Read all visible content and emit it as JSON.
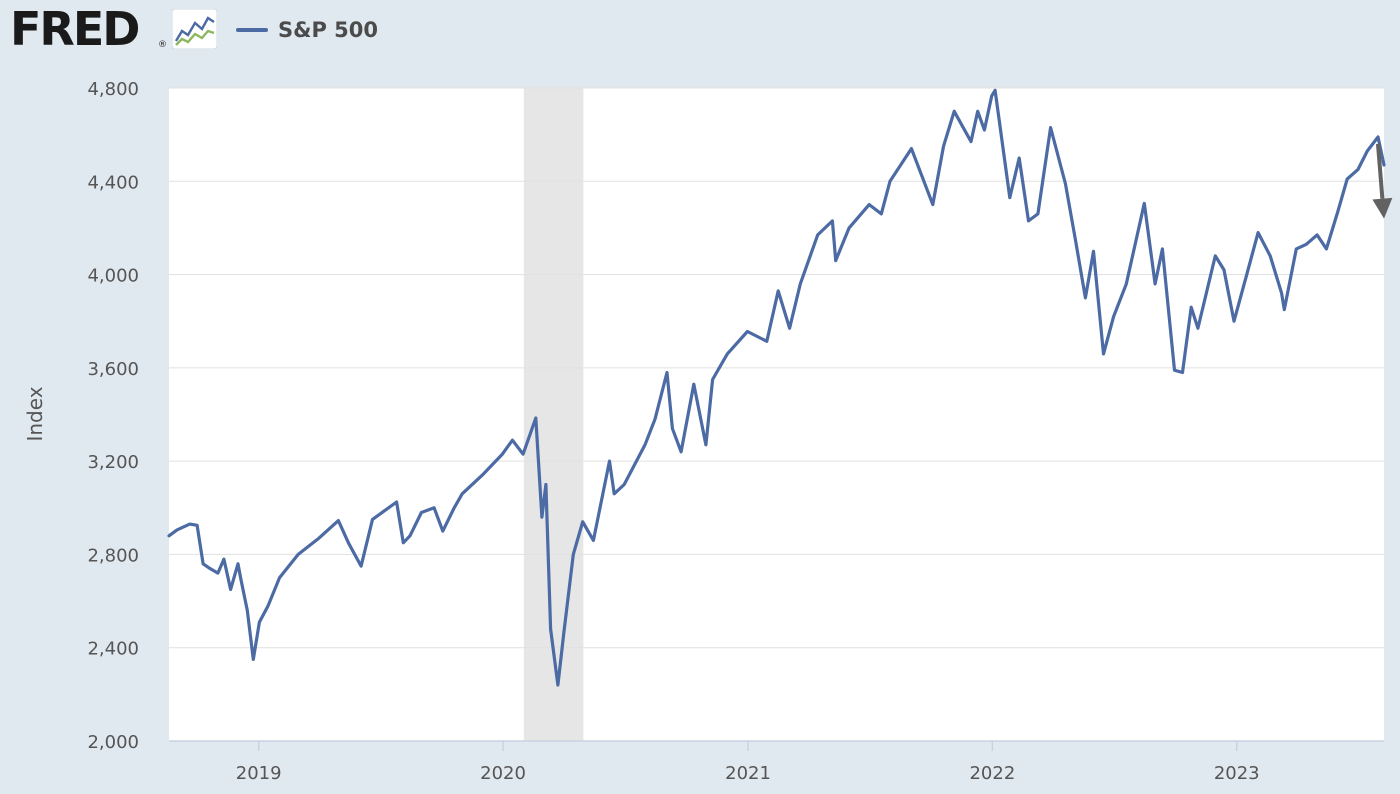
{
  "header": {
    "logo_text": "FRED",
    "logo_reg": "®",
    "logo_icon": "line-chart-icon",
    "legend_label": "S&P 500"
  },
  "colors": {
    "series": "#4c6aa3",
    "recession": "#e6e6e6",
    "grid": "#e1e1e1",
    "background": "#e1e9f0",
    "arrow": "#626262"
  },
  "chart_data": {
    "type": "line",
    "xlabel": "",
    "ylabel": "Index",
    "ylim": [
      2000,
      4800
    ],
    "yticks": [
      "2,000",
      "2,400",
      "2,800",
      "3,200",
      "3,600",
      "4,000",
      "4,400",
      "4,800"
    ],
    "xlim": [
      "2018-08-20",
      "2023-08-09"
    ],
    "xticks": [
      "2019",
      "2020",
      "2021",
      "2022",
      "2023"
    ],
    "grid": true,
    "legend": "top-left",
    "recession_band": [
      "2020-02-01",
      "2020-04-30"
    ],
    "trend_arrow": {
      "from": [
        "2023-07-31",
        4560
      ],
      "to": [
        "2023-08-09",
        4240
      ]
    },
    "series": [
      {
        "name": "S&P 500",
        "x": [
          "2018-08-20",
          "2018-09-01",
          "2018-09-20",
          "2018-10-01",
          "2018-10-10",
          "2018-10-20",
          "2018-11-01",
          "2018-11-10",
          "2018-11-20",
          "2018-12-01",
          "2018-12-05",
          "2018-12-15",
          "2018-12-24",
          "2019-01-02",
          "2019-01-15",
          "2019-02-01",
          "2019-03-01",
          "2019-04-01",
          "2019-04-30",
          "2019-05-15",
          "2019-06-03",
          "2019-06-20",
          "2019-07-26",
          "2019-08-05",
          "2019-08-15",
          "2019-09-01",
          "2019-09-20",
          "2019-10-03",
          "2019-10-20",
          "2019-11-01",
          "2019-12-01",
          "2019-12-31",
          "2020-01-15",
          "2020-01-31",
          "2020-02-19",
          "2020-02-28",
          "2020-03-05",
          "2020-03-12",
          "2020-03-23",
          "2020-04-01",
          "2020-04-15",
          "2020-04-29",
          "2020-05-15",
          "2020-06-08",
          "2020-06-15",
          "2020-06-30",
          "2020-07-31",
          "2020-08-15",
          "2020-09-02",
          "2020-09-10",
          "2020-09-23",
          "2020-10-12",
          "2020-10-30",
          "2020-11-09",
          "2020-12-01",
          "2020-12-31",
          "2021-01-29",
          "2021-02-15",
          "2021-03-04",
          "2021-03-20",
          "2021-04-15",
          "2021-05-07",
          "2021-05-12",
          "2021-06-01",
          "2021-07-01",
          "2021-07-19",
          "2021-08-01",
          "2021-09-02",
          "2021-10-04",
          "2021-10-20",
          "2021-11-05",
          "2021-11-30",
          "2021-12-10",
          "2021-12-20",
          "2021-12-31",
          "2022-01-05",
          "2022-01-27",
          "2022-02-10",
          "2022-02-24",
          "2022-03-10",
          "2022-03-29",
          "2022-04-20",
          "2022-05-05",
          "2022-05-20",
          "2022-06-01",
          "2022-06-16",
          "2022-07-01",
          "2022-07-20",
          "2022-08-16",
          "2022-09-01",
          "2022-09-12",
          "2022-09-30",
          "2022-10-12",
          "2022-10-25",
          "2022-11-04",
          "2022-11-30",
          "2022-12-13",
          "2022-12-28",
          "2023-01-15",
          "2023-02-02",
          "2023-02-20",
          "2023-03-09",
          "2023-03-13",
          "2023-03-31",
          "2023-04-15",
          "2023-05-01",
          "2023-05-15",
          "2023-06-01",
          "2023-06-15",
          "2023-07-01",
          "2023-07-15",
          "2023-07-31",
          "2023-08-09"
        ],
        "y": [
          2880,
          2905,
          2930,
          2925,
          2760,
          2740,
          2720,
          2780,
          2650,
          2760,
          2700,
          2560,
          2350,
          2510,
          2580,
          2700,
          2800,
          2870,
          2945,
          2850,
          2750,
          2950,
          3025,
          2850,
          2880,
          2980,
          3000,
          2900,
          3000,
          3060,
          3140,
          3230,
          3290,
          3230,
          3385,
          2960,
          3100,
          2480,
          2240,
          2470,
          2800,
          2940,
          2860,
          3200,
          3060,
          3100,
          3270,
          3380,
          3580,
          3340,
          3240,
          3530,
          3270,
          3550,
          3660,
          3756,
          3714,
          3930,
          3770,
          3960,
          4170,
          4230,
          4060,
          4200,
          4300,
          4260,
          4400,
          4540,
          4300,
          4550,
          4700,
          4570,
          4700,
          4620,
          4766,
          4790,
          4330,
          4500,
          4230,
          4260,
          4630,
          4390,
          4150,
          3900,
          4100,
          3660,
          3820,
          3960,
          4305,
          3960,
          4110,
          3590,
          3580,
          3860,
          3770,
          4080,
          4020,
          3800,
          3990,
          4180,
          4080,
          3920,
          3850,
          4110,
          4130,
          4170,
          4110,
          4270,
          4410,
          4450,
          4530,
          4590,
          4470
        ]
      }
    ]
  }
}
